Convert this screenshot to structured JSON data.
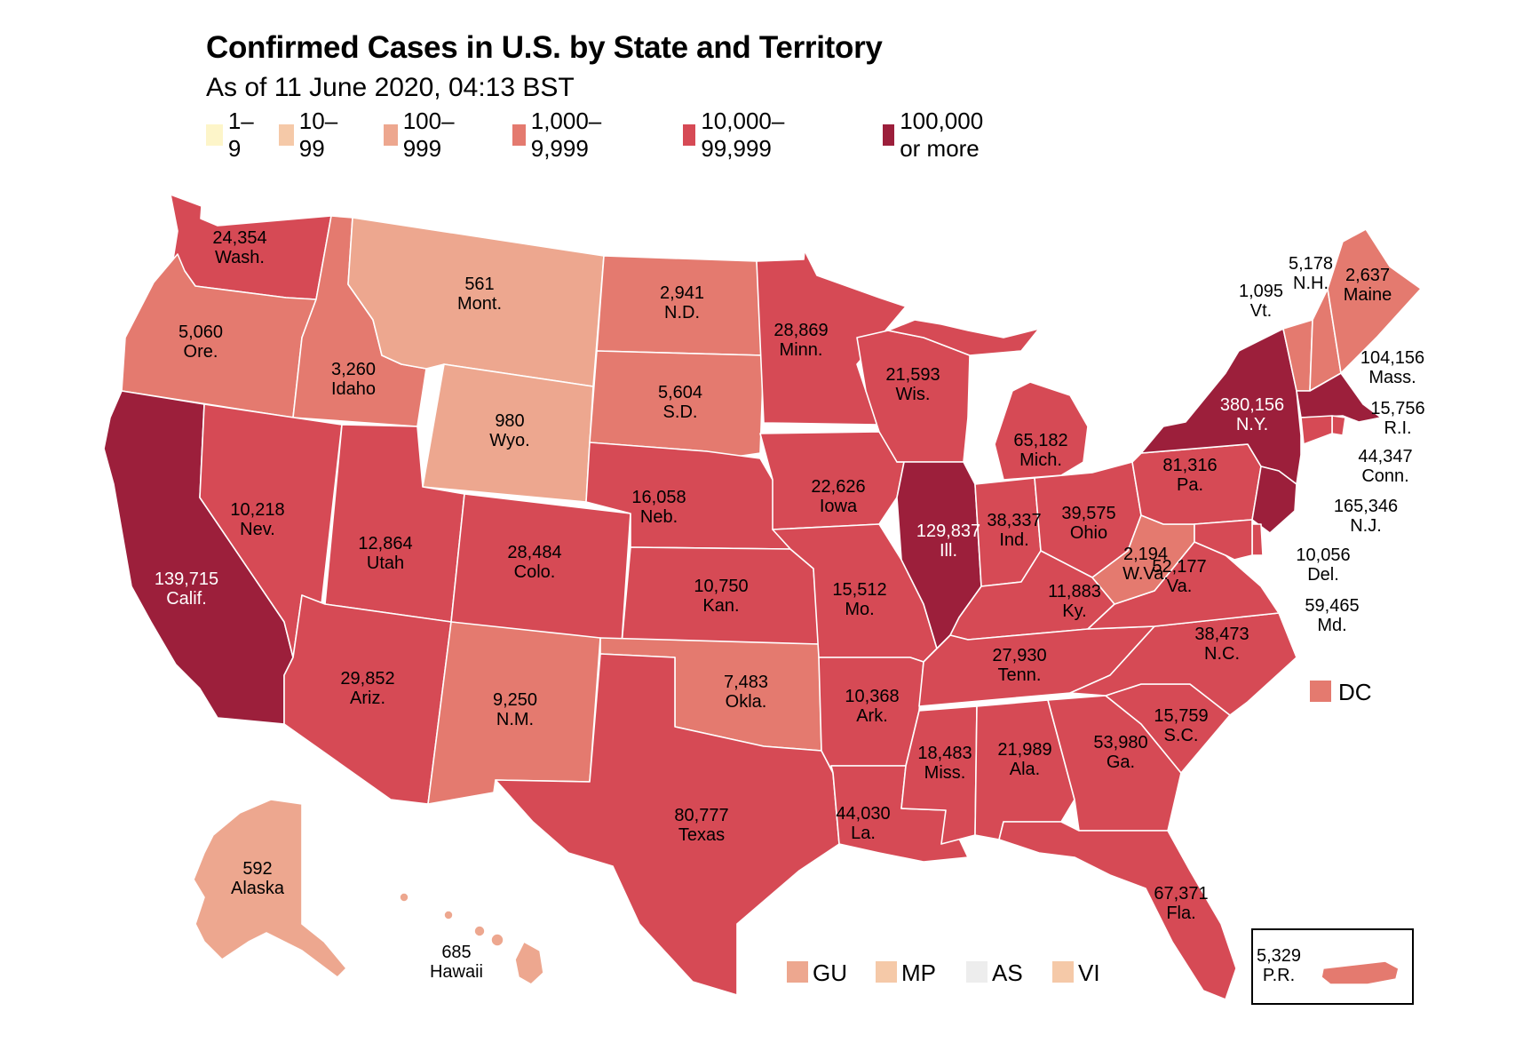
{
  "title": "Confirmed Cases in U.S. by State and Territory",
  "subtitle": "As of 11 June 2020, 04:13 BST",
  "legend": [
    {
      "label": "1–9",
      "color": "#fdf5c9"
    },
    {
      "label": "10–99",
      "color": "#f5c9a8"
    },
    {
      "label": "100–999",
      "color": "#eda78f"
    },
    {
      "label": "1,000–9,999",
      "color": "#e47a6f"
    },
    {
      "label": "10,000–99,999",
      "color": "#d64a55"
    },
    {
      "label": "100,000 or more",
      "color": "#9c1f3b"
    }
  ],
  "states": [
    {
      "id": "WA",
      "value": "24,354",
      "abbr": "Wash.",
      "color": "#d64a55"
    },
    {
      "id": "OR",
      "value": "5,060",
      "abbr": "Ore.",
      "color": "#e47a6f"
    },
    {
      "id": "CA",
      "value": "139,715",
      "abbr": "Calif.",
      "color": "#9c1f3b"
    },
    {
      "id": "ID",
      "value": "3,260",
      "abbr": "Idaho",
      "color": "#e47a6f"
    },
    {
      "id": "NV",
      "value": "10,218",
      "abbr": "Nev.",
      "color": "#d64a55"
    },
    {
      "id": "MT",
      "value": "561",
      "abbr": "Mont.",
      "color": "#eda78f"
    },
    {
      "id": "WY",
      "value": "980",
      "abbr": "Wyo.",
      "color": "#eda78f"
    },
    {
      "id": "UT",
      "value": "12,864",
      "abbr": "Utah",
      "color": "#d64a55"
    },
    {
      "id": "AZ",
      "value": "29,852",
      "abbr": "Ariz.",
      "color": "#d64a55"
    },
    {
      "id": "CO",
      "value": "28,484",
      "abbr": "Colo.",
      "color": "#d64a55"
    },
    {
      "id": "NM",
      "value": "9,250",
      "abbr": "N.M.",
      "color": "#e47a6f"
    },
    {
      "id": "ND",
      "value": "2,941",
      "abbr": "N.D.",
      "color": "#e47a6f"
    },
    {
      "id": "SD",
      "value": "5,604",
      "abbr": "S.D.",
      "color": "#e47a6f"
    },
    {
      "id": "NE",
      "value": "16,058",
      "abbr": "Neb.",
      "color": "#d64a55"
    },
    {
      "id": "KS",
      "value": "10,750",
      "abbr": "Kan.",
      "color": "#d64a55"
    },
    {
      "id": "OK",
      "value": "7,483",
      "abbr": "Okla.",
      "color": "#e47a6f"
    },
    {
      "id": "TX",
      "value": "80,777",
      "abbr": "Texas",
      "color": "#d64a55"
    },
    {
      "id": "MN",
      "value": "28,869",
      "abbr": "Minn.",
      "color": "#d64a55"
    },
    {
      "id": "IA",
      "value": "22,626",
      "abbr": "Iowa",
      "color": "#d64a55"
    },
    {
      "id": "MO",
      "value": "15,512",
      "abbr": "Mo.",
      "color": "#d64a55"
    },
    {
      "id": "AR",
      "value": "10,368",
      "abbr": "Ark.",
      "color": "#d64a55"
    },
    {
      "id": "LA",
      "value": "44,030",
      "abbr": "La.",
      "color": "#d64a55"
    },
    {
      "id": "WI",
      "value": "21,593",
      "abbr": "Wis.",
      "color": "#d64a55"
    },
    {
      "id": "IL",
      "value": "129,837",
      "abbr": "Ill.",
      "color": "#9c1f3b"
    },
    {
      "id": "MI",
      "value": "65,182",
      "abbr": "Mich.",
      "color": "#d64a55"
    },
    {
      "id": "IN",
      "value": "38,337",
      "abbr": "Ind.",
      "color": "#d64a55"
    },
    {
      "id": "OH",
      "value": "39,575",
      "abbr": "Ohio",
      "color": "#d64a55"
    },
    {
      "id": "KY",
      "value": "11,883",
      "abbr": "Ky.",
      "color": "#d64a55"
    },
    {
      "id": "TN",
      "value": "27,930",
      "abbr": "Tenn.",
      "color": "#d64a55"
    },
    {
      "id": "MS",
      "value": "18,483",
      "abbr": "Miss.",
      "color": "#d64a55"
    },
    {
      "id": "AL",
      "value": "21,989",
      "abbr": "Ala.",
      "color": "#d64a55"
    },
    {
      "id": "GA",
      "value": "53,980",
      "abbr": "Ga.",
      "color": "#d64a55"
    },
    {
      "id": "FL",
      "value": "67,371",
      "abbr": "Fla.",
      "color": "#d64a55"
    },
    {
      "id": "SC",
      "value": "15,759",
      "abbr": "S.C.",
      "color": "#d64a55"
    },
    {
      "id": "NC",
      "value": "38,473",
      "abbr": "N.C.",
      "color": "#d64a55"
    },
    {
      "id": "VA",
      "value": "52,177",
      "abbr": "Va.",
      "color": "#d64a55"
    },
    {
      "id": "WV",
      "value": "2,194",
      "abbr": "W.Va.",
      "color": "#e47a6f"
    },
    {
      "id": "PA",
      "value": "81,316",
      "abbr": "Pa.",
      "color": "#d64a55"
    },
    {
      "id": "NY",
      "value": "380,156",
      "abbr": "N.Y.",
      "color": "#9c1f3b"
    },
    {
      "id": "VT",
      "value": "1,095",
      "abbr": "Vt.",
      "color": "#e47a6f"
    },
    {
      "id": "NH",
      "value": "5,178",
      "abbr": "N.H.",
      "color": "#e47a6f"
    },
    {
      "id": "ME",
      "value": "2,637",
      "abbr": "Maine",
      "color": "#e47a6f"
    },
    {
      "id": "MA",
      "value": "104,156",
      "abbr": "Mass.",
      "color": "#9c1f3b"
    },
    {
      "id": "RI",
      "value": "15,756",
      "abbr": "R.I.",
      "color": "#d64a55"
    },
    {
      "id": "CT",
      "value": "44,347",
      "abbr": "Conn.",
      "color": "#d64a55"
    },
    {
      "id": "NJ",
      "value": "165,346",
      "abbr": "N.J.",
      "color": "#9c1f3b"
    },
    {
      "id": "DE",
      "value": "10,056",
      "abbr": "Del.",
      "color": "#d64a55"
    },
    {
      "id": "MD",
      "value": "59,465",
      "abbr": "Md.",
      "color": "#d64a55"
    },
    {
      "id": "AK",
      "value": "592",
      "abbr": "Alaska",
      "color": "#eda78f"
    },
    {
      "id": "HI",
      "value": "685",
      "abbr": "Hawaii",
      "color": "#eda78f"
    },
    {
      "id": "PR",
      "value": "5,329",
      "abbr": "P.R.",
      "color": "#e47a6f"
    }
  ],
  "dc": {
    "label": "DC",
    "color": "#e47a6f"
  },
  "territories": [
    {
      "label": "GU",
      "color": "#eda78f"
    },
    {
      "label": "MP",
      "color": "#f5c9a8"
    },
    {
      "label": "AS",
      "color": "#ededed"
    },
    {
      "label": "VI",
      "color": "#f5c9a8"
    }
  ]
}
